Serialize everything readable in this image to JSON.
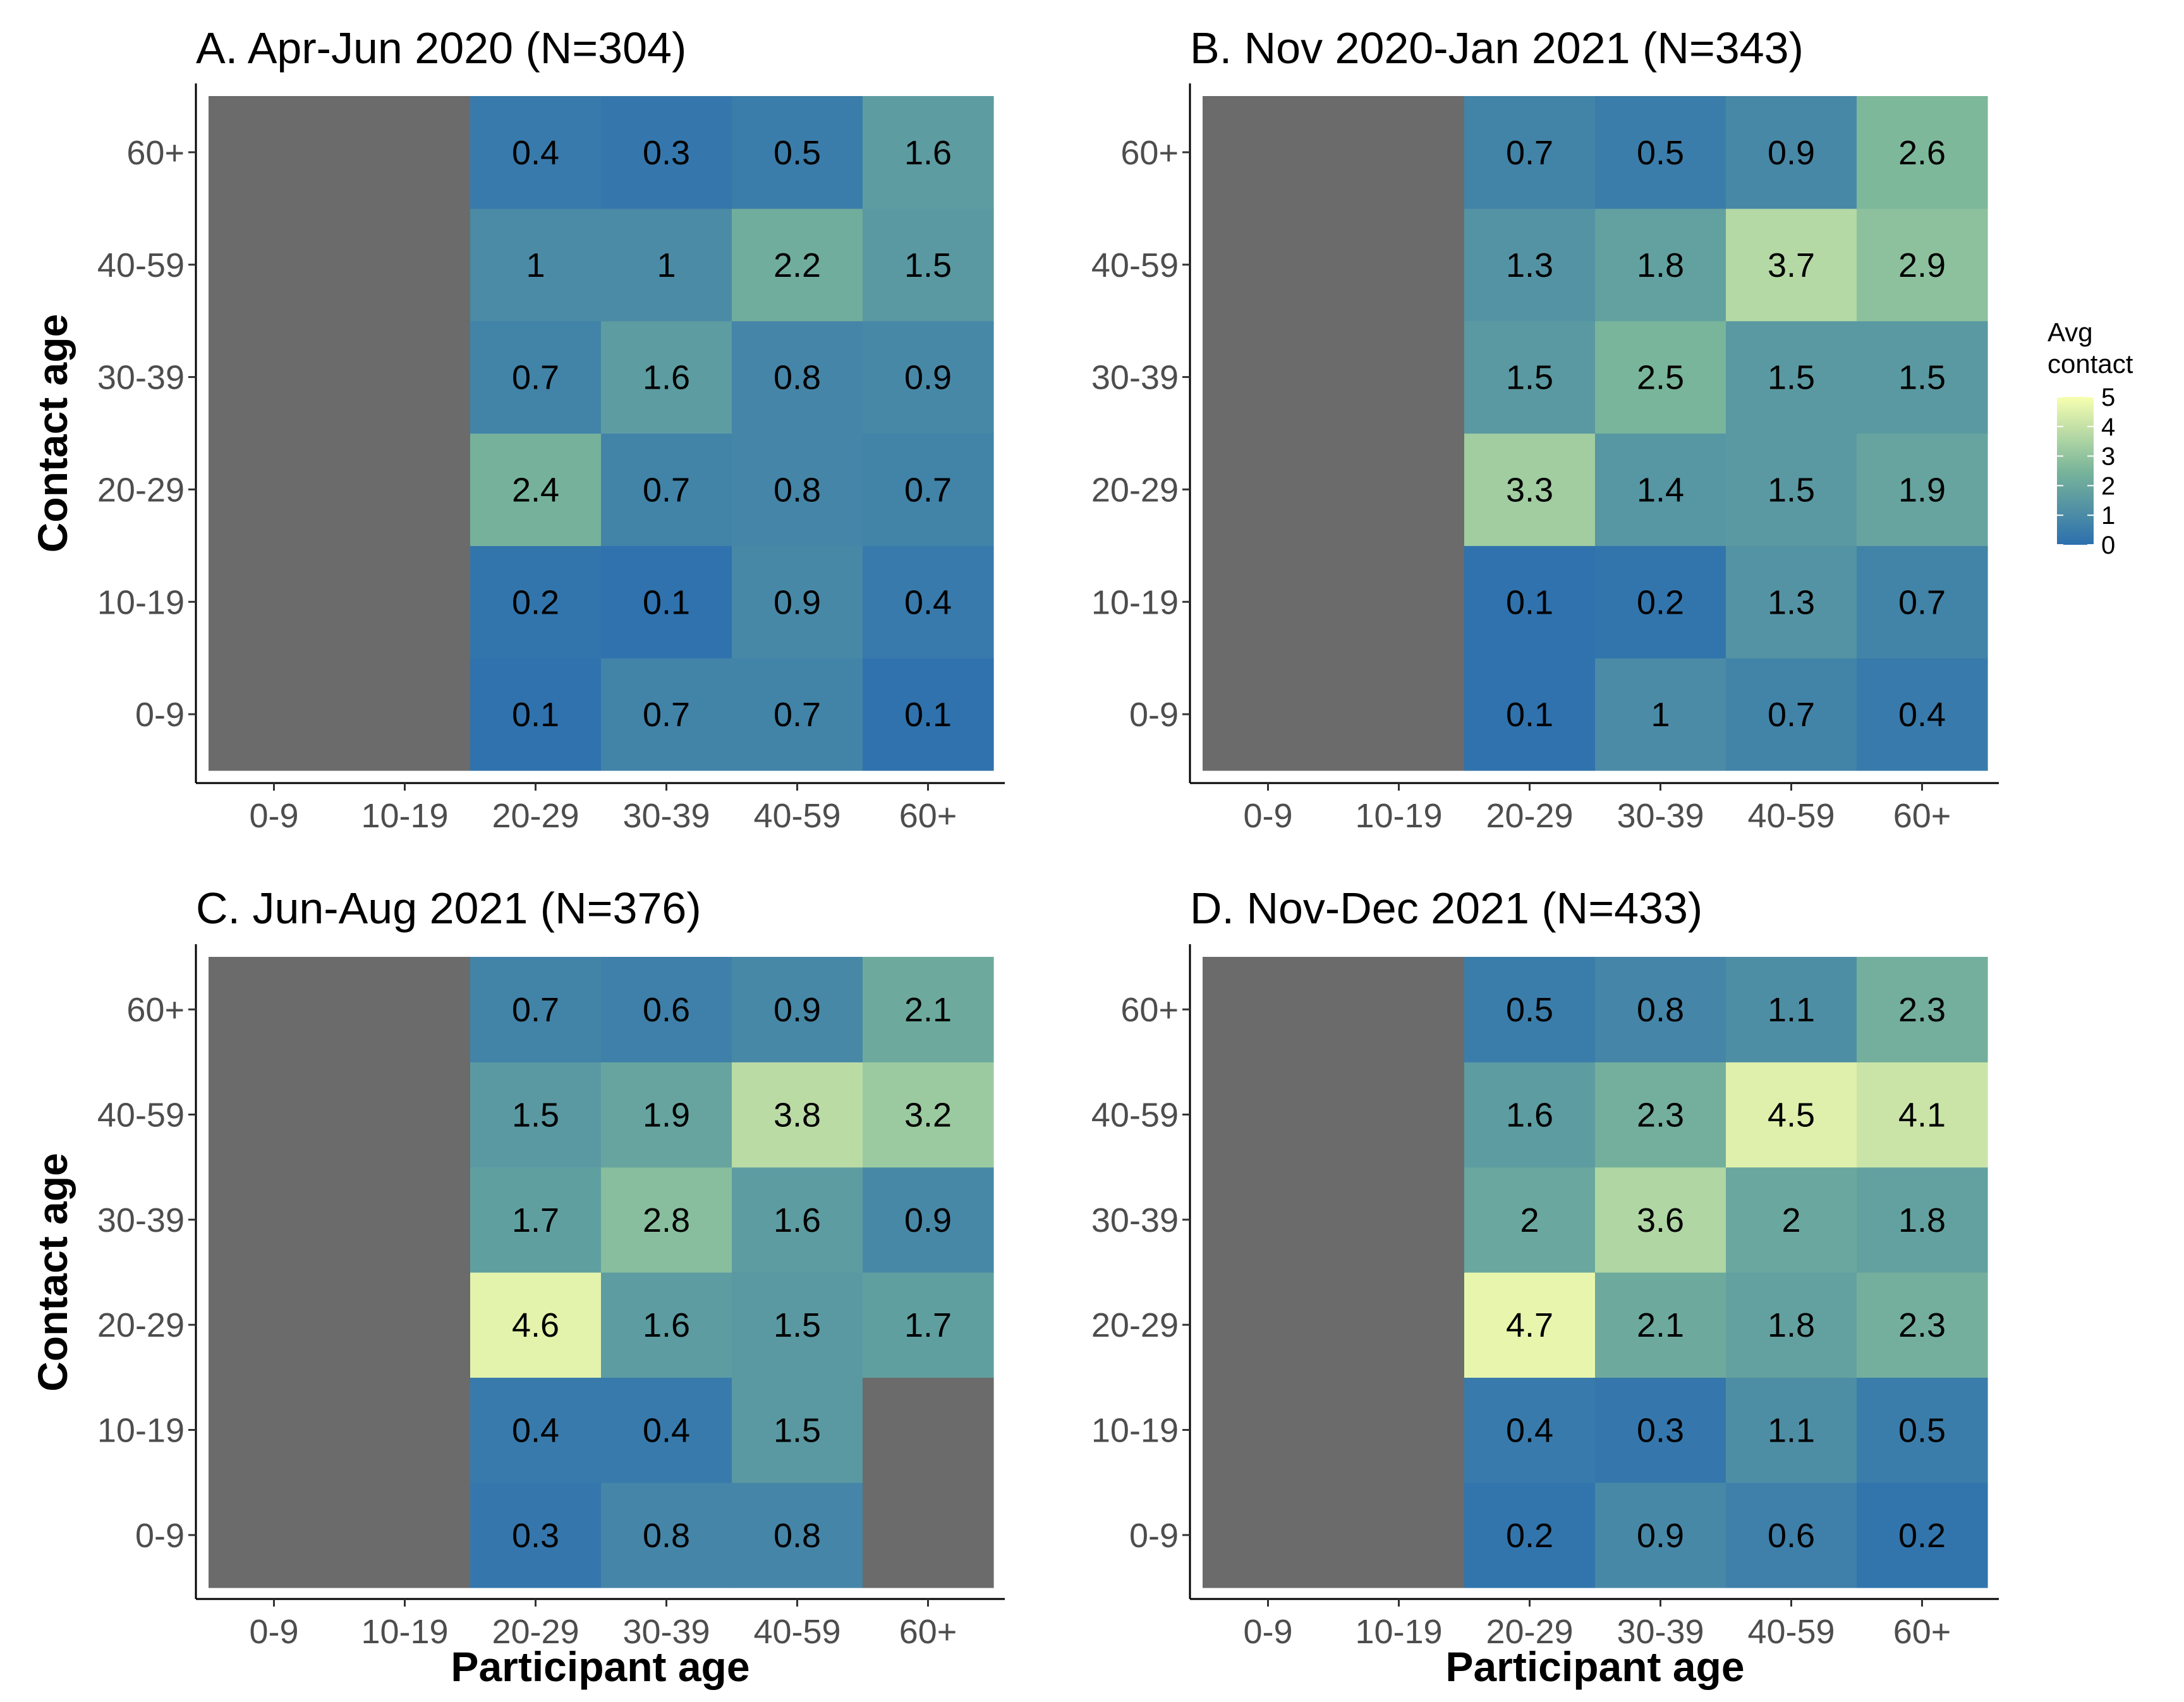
{
  "chart_data": {
    "type": "heatmap",
    "xlabel": "Participant age",
    "ylabel": "Contact age",
    "x_categories": [
      "0-9",
      "10-19",
      "20-29",
      "30-39",
      "40-59",
      "60+"
    ],
    "y_categories": [
      "0-9",
      "10-19",
      "20-29",
      "30-39",
      "40-59",
      "60+"
    ],
    "legend": {
      "title_line1": "Avg",
      "title_line2": "contact",
      "ticks": [
        0,
        1,
        2,
        3,
        4,
        5
      ],
      "range": [
        0,
        5
      ],
      "placement": "right"
    },
    "colors": {
      "missing": "#6b6b6b",
      "low": "#2c6fae",
      "mid": "#79b59a",
      "high": "#f7ffb0",
      "axis": "#000000",
      "tick_text": "#4d4d4d"
    },
    "panels": [
      {
        "title": "A. Apr-Jun 2020 (N=304)",
        "values": [
          [
            null,
            null,
            0.1,
            0.7,
            0.7,
            0.1
          ],
          [
            null,
            null,
            0.2,
            0.1,
            0.9,
            0.4
          ],
          [
            null,
            null,
            2.4,
            0.7,
            0.8,
            0.7
          ],
          [
            null,
            null,
            0.7,
            1.6,
            0.8,
            0.9
          ],
          [
            null,
            null,
            1,
            1,
            2.2,
            1.5
          ],
          [
            null,
            null,
            0.4,
            0.3,
            0.5,
            1.6
          ]
        ],
        "labels": [
          [
            "",
            "",
            "0.1",
            "0.7",
            "0.7",
            "0.1"
          ],
          [
            "",
            "",
            "0.2",
            "0.1",
            "0.9",
            "0.4"
          ],
          [
            "",
            "",
            "2.4",
            "0.7",
            "0.8",
            "0.7"
          ],
          [
            "",
            "",
            "0.7",
            "1.6",
            "0.8",
            "0.9"
          ],
          [
            "",
            "",
            "1",
            "1",
            "2.2",
            "1.5"
          ],
          [
            "",
            "",
            "0.4",
            "0.3",
            "0.5",
            "1.6"
          ]
        ]
      },
      {
        "title": "B. Nov 2020-Jan 2021 (N=343)",
        "values": [
          [
            null,
            null,
            0.1,
            1,
            0.7,
            0.4
          ],
          [
            null,
            null,
            0.1,
            0.2,
            1.3,
            0.7
          ],
          [
            null,
            null,
            3.3,
            1.4,
            1.5,
            1.9
          ],
          [
            null,
            null,
            1.5,
            2.5,
            1.5,
            1.5
          ],
          [
            null,
            null,
            1.3,
            1.8,
            3.7,
            2.9
          ],
          [
            null,
            null,
            0.7,
            0.5,
            0.9,
            2.6
          ]
        ],
        "labels": [
          [
            "",
            "",
            "0.1",
            "1",
            "0.7",
            "0.4"
          ],
          [
            "",
            "",
            "0.1",
            "0.2",
            "1.3",
            "0.7"
          ],
          [
            "",
            "",
            "3.3",
            "1.4",
            "1.5",
            "1.9"
          ],
          [
            "",
            "",
            "1.5",
            "2.5",
            "1.5",
            "1.5"
          ],
          [
            "",
            "",
            "1.3",
            "1.8",
            "3.7",
            "2.9"
          ],
          [
            "",
            "",
            "0.7",
            "0.5",
            "0.9",
            "2.6"
          ]
        ]
      },
      {
        "title": "C. Jun-Aug 2021 (N=376)",
        "values": [
          [
            null,
            null,
            0.3,
            0.8,
            0.8,
            null
          ],
          [
            null,
            null,
            0.4,
            0.4,
            1.5,
            null
          ],
          [
            null,
            null,
            4.6,
            1.6,
            1.5,
            1.7
          ],
          [
            null,
            null,
            1.7,
            2.8,
            1.6,
            0.9
          ],
          [
            null,
            null,
            1.5,
            1.9,
            3.8,
            3.2
          ],
          [
            null,
            null,
            0.7,
            0.6,
            0.9,
            2.1
          ]
        ],
        "labels": [
          [
            "",
            "",
            "0.3",
            "0.8",
            "0.8",
            ""
          ],
          [
            "",
            "",
            "0.4",
            "0.4",
            "1.5",
            ""
          ],
          [
            "",
            "",
            "4.6",
            "1.6",
            "1.5",
            "1.7"
          ],
          [
            "",
            "",
            "1.7",
            "2.8",
            "1.6",
            "0.9"
          ],
          [
            "",
            "",
            "1.5",
            "1.9",
            "3.8",
            "3.2"
          ],
          [
            "",
            "",
            "0.7",
            "0.6",
            "0.9",
            "2.1"
          ]
        ]
      },
      {
        "title": "D. Nov-Dec 2021 (N=433)",
        "values": [
          [
            null,
            null,
            0.2,
            0.9,
            0.6,
            0.2
          ],
          [
            null,
            null,
            0.4,
            0.3,
            1.1,
            0.5
          ],
          [
            null,
            null,
            4.7,
            2.1,
            1.8,
            2.3
          ],
          [
            null,
            null,
            2,
            3.6,
            2,
            1.8
          ],
          [
            null,
            null,
            1.6,
            2.3,
            4.5,
            4.1
          ],
          [
            null,
            null,
            0.5,
            0.8,
            1.1,
            2.3
          ]
        ],
        "labels": [
          [
            "",
            "",
            "0.2",
            "0.9",
            "0.6",
            "0.2"
          ],
          [
            "",
            "",
            "0.4",
            "0.3",
            "1.1",
            "0.5"
          ],
          [
            "",
            "",
            "4.7",
            "2.1",
            "1.8",
            "2.3"
          ],
          [
            "",
            "",
            "2",
            "3.6",
            "2",
            "1.8"
          ],
          [
            "",
            "",
            "1.6",
            "2.3",
            "4.5",
            "4.1"
          ],
          [
            "",
            "",
            "0.5",
            "0.8",
            "1.1",
            "2.3"
          ]
        ]
      }
    ]
  }
}
